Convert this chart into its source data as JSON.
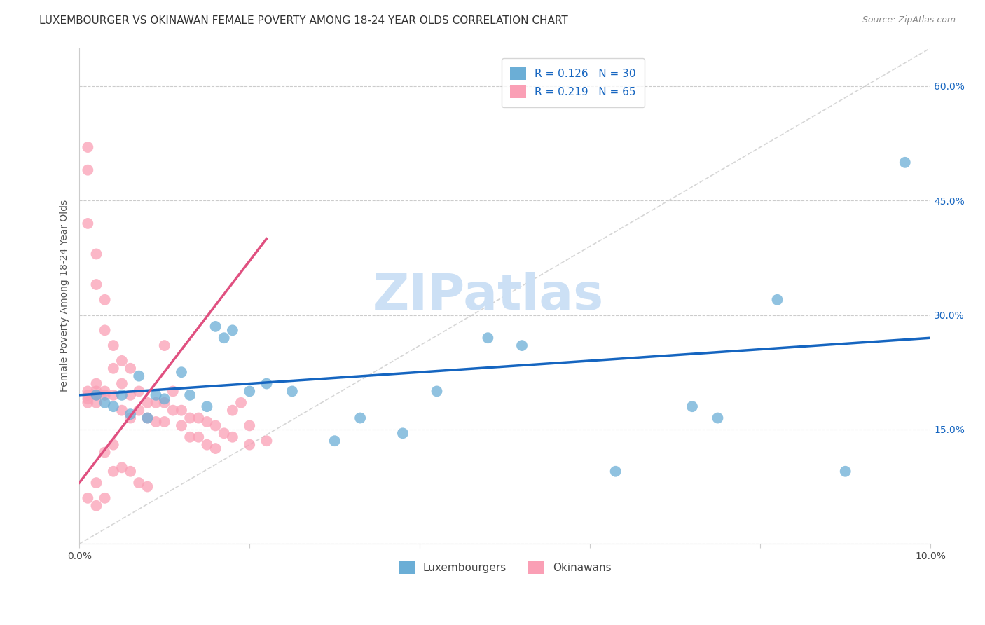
{
  "title": "LUXEMBOURGER VS OKINAWAN FEMALE POVERTY AMONG 18-24 YEAR OLDS CORRELATION CHART",
  "source": "Source: ZipAtlas.com",
  "ylabel": "Female Poverty Among 18-24 Year Olds",
  "xlim": [
    0.0,
    0.1
  ],
  "ylim": [
    0.0,
    0.65
  ],
  "x_ticks": [
    0.0,
    0.02,
    0.04,
    0.06,
    0.08,
    0.1
  ],
  "x_tick_labels": [
    "0.0%",
    "",
    "",
    "",
    "",
    "10.0%"
  ],
  "y_ticks_right": [
    0.0,
    0.15,
    0.3,
    0.45,
    0.6
  ],
  "y_tick_labels_right": [
    "",
    "15.0%",
    "30.0%",
    "45.0%",
    "60.0%"
  ],
  "luxembourger_color": "#6baed6",
  "okinawan_color": "#fa9fb5",
  "trend_lux_color": "#1565C0",
  "trend_oki_color": "#e05080",
  "diagonal_color": "#cccccc",
  "R_lux": 0.126,
  "N_lux": 30,
  "R_oki": 0.219,
  "N_oki": 65,
  "lux_x": [
    0.002,
    0.003,
    0.004,
    0.005,
    0.006,
    0.007,
    0.008,
    0.009,
    0.01,
    0.012,
    0.013,
    0.015,
    0.016,
    0.017,
    0.018,
    0.02,
    0.022,
    0.025,
    0.03,
    0.033,
    0.038,
    0.042,
    0.048,
    0.052,
    0.063,
    0.072,
    0.075,
    0.082,
    0.09,
    0.097
  ],
  "lux_y": [
    0.195,
    0.185,
    0.18,
    0.195,
    0.17,
    0.22,
    0.165,
    0.195,
    0.19,
    0.225,
    0.195,
    0.18,
    0.285,
    0.27,
    0.28,
    0.2,
    0.21,
    0.2,
    0.135,
    0.165,
    0.145,
    0.2,
    0.27,
    0.26,
    0.095,
    0.18,
    0.165,
    0.32,
    0.095,
    0.5
  ],
  "oki_x": [
    0.001,
    0.001,
    0.001,
    0.001,
    0.001,
    0.001,
    0.001,
    0.001,
    0.002,
    0.002,
    0.002,
    0.002,
    0.002,
    0.002,
    0.002,
    0.002,
    0.003,
    0.003,
    0.003,
    0.003,
    0.003,
    0.003,
    0.004,
    0.004,
    0.004,
    0.004,
    0.004,
    0.005,
    0.005,
    0.005,
    0.005,
    0.006,
    0.006,
    0.006,
    0.006,
    0.007,
    0.007,
    0.007,
    0.008,
    0.008,
    0.008,
    0.009,
    0.009,
    0.01,
    0.01,
    0.01,
    0.011,
    0.011,
    0.012,
    0.012,
    0.013,
    0.013,
    0.014,
    0.014,
    0.015,
    0.015,
    0.016,
    0.016,
    0.017,
    0.018,
    0.018,
    0.019,
    0.02,
    0.02,
    0.022
  ],
  "oki_y": [
    0.52,
    0.49,
    0.42,
    0.2,
    0.195,
    0.19,
    0.185,
    0.06,
    0.38,
    0.34,
    0.21,
    0.2,
    0.195,
    0.185,
    0.08,
    0.05,
    0.32,
    0.28,
    0.2,
    0.195,
    0.12,
    0.06,
    0.26,
    0.23,
    0.195,
    0.13,
    0.095,
    0.24,
    0.21,
    0.175,
    0.1,
    0.23,
    0.195,
    0.165,
    0.095,
    0.2,
    0.175,
    0.08,
    0.185,
    0.165,
    0.075,
    0.185,
    0.16,
    0.26,
    0.185,
    0.16,
    0.2,
    0.175,
    0.175,
    0.155,
    0.165,
    0.14,
    0.165,
    0.14,
    0.16,
    0.13,
    0.155,
    0.125,
    0.145,
    0.175,
    0.14,
    0.185,
    0.155,
    0.13,
    0.135
  ],
  "background_color": "#ffffff",
  "watermark_text": "ZIPatlas",
  "watermark_color": "#cce0f5",
  "watermark_fontsize": 52,
  "title_fontsize": 11,
  "source_fontsize": 9,
  "legend_fontsize": 11,
  "trend_lux_x0": 0.0,
  "trend_lux_y0": 0.195,
  "trend_lux_x1": 0.1,
  "trend_lux_y1": 0.27,
  "trend_oki_x0": 0.0,
  "trend_oki_y0": 0.08,
  "trend_oki_x1": 0.022,
  "trend_oki_y1": 0.4
}
